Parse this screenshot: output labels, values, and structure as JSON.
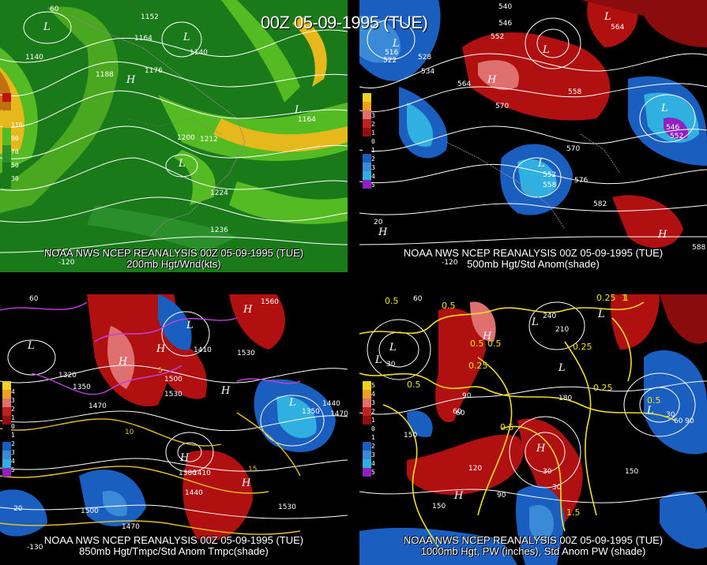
{
  "title": "00Z 05-09-1995 (TUE)",
  "colors": {
    "background": "#000000",
    "wind_green_dark": "#1f8a1f",
    "wind_green_light": "#66cc22",
    "wind_yellow": "#f0c020",
    "wind_orange": "#e08010",
    "anom_red": "#b01010",
    "anom_pink": "#e07070",
    "anom_blue": "#1060c0",
    "anom_cyan": "#30c0e0",
    "anom_purple": "#9020c0",
    "temp_line_yellow": "#e8c020",
    "temp_line_magenta": "#c040e0"
  },
  "panels": [
    {
      "id": "p200",
      "caption_line1": "NOAA NWS NCEP REANALYSIS 00Z 05-09-1995 (TUE)",
      "caption_line2": "200mb Hgt/Wnd(kts)",
      "legend_labels": [
        "110",
        "90",
        "70",
        "50",
        "30"
      ],
      "contour_labels": [
        "1152",
        "1164",
        "1140",
        "1140",
        "1188",
        "1176",
        "1164",
        "1200",
        "1212",
        "1224",
        "1236"
      ],
      "axis_labels": [
        "60",
        "-120"
      ],
      "centers": [
        "L",
        "H",
        "L",
        "L",
        "L"
      ]
    },
    {
      "id": "p500",
      "caption_line1": "NOAA NWS NCEP REANALYSIS 00Z 05-09-1995 (TUE)",
      "caption_line2": "500mb Hgt/Std Anom(shade)",
      "legend_labels": [
        "3",
        "2",
        "1",
        "0",
        "1",
        "2",
        "3",
        "4",
        "5"
      ],
      "contour_labels": [
        "540",
        "546",
        "552",
        "564",
        "516",
        "522",
        "528",
        "534",
        "564",
        "570",
        "558",
        "570",
        "552",
        "558",
        "576",
        "582",
        "588",
        "546",
        "552"
      ],
      "axis_labels": [
        "20",
        "-120"
      ],
      "centers": [
        "L",
        "L",
        "H",
        "L",
        "L",
        "L",
        "H",
        "H"
      ]
    },
    {
      "id": "p850",
      "caption_line1": "NOAA NWS NCEP REANALYSIS 00Z 05-09-1995 (TUE)",
      "caption_line2": "850mb Hgt/Tmpc/Std Anom Tmpc(shade)",
      "legend_labels": [
        "4",
        "3",
        "2",
        "1",
        "0",
        "1",
        "2",
        "3",
        "4",
        "5"
      ],
      "contour_labels": [
        "1560",
        "1470",
        "1320",
        "1350",
        "1500",
        "1530",
        "1530",
        "1410",
        "1350",
        "1440",
        "1470",
        "1380",
        "1410",
        "1440",
        "1500",
        "1470",
        "1530",
        "10",
        "15",
        "5"
      ],
      "axis_labels": [
        "60",
        "20",
        "-130"
      ],
      "centers": [
        "L",
        "H",
        "H",
        "H",
        "L",
        "H",
        "L",
        "H",
        "H"
      ]
    },
    {
      "id": "p1000",
      "caption_line1": "NOAA NWS NCEP REANALYSIS 00Z 05-09-1995 (TUE)",
      "caption_line2": "1000mb Hgt, PW (inches), Std Anom PW (shade)",
      "legend_labels": [
        "5",
        "4",
        "3",
        "2",
        "1",
        "0",
        "1",
        "2",
        "3",
        "4",
        "5"
      ],
      "contour_labels": [
        "0.5",
        "0.5",
        "0.25",
        "240",
        "210",
        "1",
        "0.5",
        "0.5",
        "0.25",
        "0.25",
        "0.5",
        "30",
        "60",
        "90",
        "180",
        "0.25",
        "0.5",
        "30",
        "60",
        "90",
        "150",
        "60",
        "120",
        "0.5",
        "30",
        "90",
        "30",
        "150",
        "150",
        "1.5",
        "1"
      ],
      "axis_labels": [
        "60"
      ],
      "centers": [
        "L",
        "L",
        "L",
        "H",
        "L",
        "L",
        "H",
        "L",
        "H"
      ]
    }
  ]
}
